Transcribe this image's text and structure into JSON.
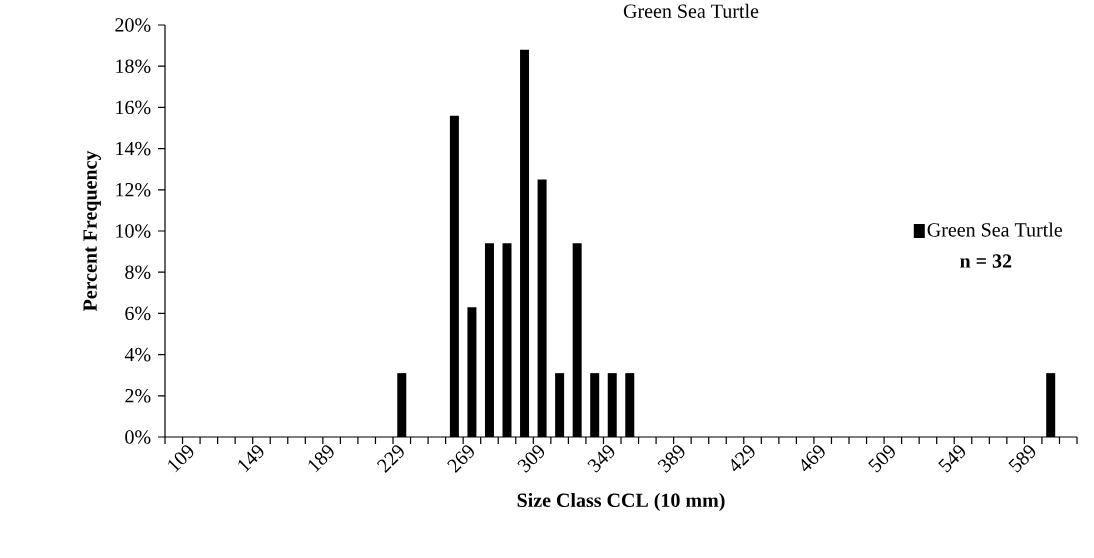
{
  "chart_data": {
    "type": "bar",
    "title": "Green Sea Turtle",
    "xlabel": "Size Class CCL (10 mm)",
    "ylabel": "Percent Frequency",
    "categories": [
      "109",
      null,
      null,
      null,
      "149",
      null,
      null,
      null,
      "189",
      null,
      null,
      null,
      "229",
      null,
      null,
      null,
      "269",
      null,
      null,
      null,
      "309",
      null,
      null,
      null,
      "349",
      null,
      null,
      null,
      "389",
      null,
      null,
      null,
      "429",
      null,
      null,
      null,
      "469",
      null,
      null,
      null,
      "509",
      null,
      null,
      null,
      "549",
      null,
      null,
      null,
      "589",
      null,
      null,
      null
    ],
    "series": [
      {
        "name": "Green Sea Turtle",
        "color": "#000000",
        "values": [
          0,
          0,
          0,
          0,
          0,
          0,
          0,
          0,
          0,
          0,
          0,
          0,
          0,
          3.1,
          0,
          0,
          15.6,
          6.3,
          9.4,
          9.4,
          18.8,
          12.5,
          3.1,
          9.4,
          3.1,
          3.1,
          3.1,
          0,
          0,
          0,
          0,
          0,
          0,
          0,
          0,
          0,
          0,
          0,
          0,
          0,
          0,
          0,
          0,
          0,
          0,
          0,
          0,
          0,
          0,
          0,
          3.1,
          0
        ]
      }
    ],
    "ylim": [
      0,
      20
    ],
    "yticks": [
      {
        "value": 0,
        "label": "0%"
      },
      {
        "value": 2,
        "label": "2%"
      },
      {
        "value": 4,
        "label": "4%"
      },
      {
        "value": 6,
        "label": "6%"
      },
      {
        "value": 8,
        "label": "8%"
      },
      {
        "value": 10,
        "label": "10%"
      },
      {
        "value": 12,
        "label": "12%"
      },
      {
        "value": 14,
        "label": "14%"
      },
      {
        "value": 16,
        "label": "16%"
      },
      {
        "value": 18,
        "label": "18%"
      },
      {
        "value": 20,
        "label": "20%"
      }
    ],
    "legend": "right",
    "annotations": [
      "n = 32"
    ]
  }
}
